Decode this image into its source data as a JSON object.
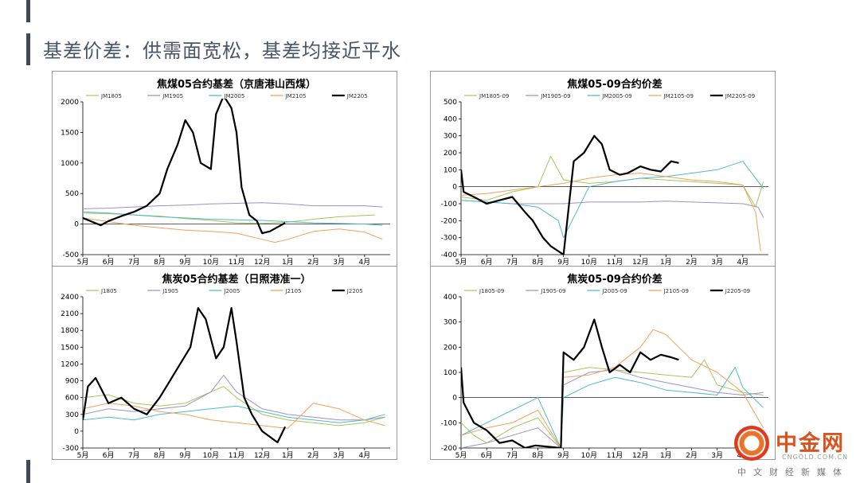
{
  "page": {
    "title": "基差价差：供需面宽松，基差均接近平水",
    "watermark": {
      "brand": "中金网",
      "url": "CNGOLD.COM.CN",
      "sub": "中文财经新媒体"
    }
  },
  "chart_data": [
    {
      "type": "line",
      "title": "焦煤05合约基差（京唐港山西煤）",
      "months": [
        "5月",
        "6月",
        "7月",
        "8月",
        "9月",
        "10月",
        "11月",
        "12月",
        "1月",
        "2月",
        "3月",
        "4月"
      ],
      "ylim": [
        -500,
        2000
      ],
      "yticks": [
        -500,
        0,
        500,
        1000,
        1500,
        2000
      ],
      "legend_position": "top",
      "zero_line": true,
      "series": [
        {
          "name": "JM1805",
          "color": "#a6c65a",
          "width": 1,
          "x": [
            0,
            1,
            2,
            3,
            4,
            5,
            6,
            7,
            8,
            9,
            10,
            11.4
          ],
          "y": [
            180,
            170,
            150,
            130,
            90,
            60,
            20,
            10,
            30,
            80,
            120,
            150
          ]
        },
        {
          "name": "JM1905",
          "color": "#9f8fc9",
          "width": 1,
          "x": [
            0,
            1,
            2,
            3,
            4,
            5,
            6,
            7,
            8,
            9,
            10,
            11,
            11.7
          ],
          "y": [
            250,
            260,
            280,
            300,
            310,
            330,
            340,
            350,
            330,
            300,
            300,
            300,
            280
          ]
        },
        {
          "name": "JM2005",
          "color": "#4fb9cc",
          "width": 1,
          "x": [
            0,
            1,
            2,
            3,
            4,
            5,
            6,
            7,
            8,
            9,
            10,
            11,
            11.7
          ],
          "y": [
            200,
            180,
            150,
            120,
            100,
            80,
            70,
            60,
            40,
            20,
            10,
            0,
            -20
          ]
        },
        {
          "name": "JM2105",
          "color": "#f0a15a",
          "width": 1,
          "x": [
            0,
            1,
            2,
            3,
            4,
            5,
            6,
            7,
            7.5,
            8,
            9,
            10,
            11,
            11.7
          ],
          "y": [
            100,
            40,
            -20,
            -60,
            -100,
            -120,
            -150,
            -250,
            -300,
            -250,
            -120,
            -80,
            -130,
            -250
          ]
        },
        {
          "name": "JM2205",
          "color": "#000000",
          "width": 2.2,
          "x": [
            0,
            0.7,
            1,
            1.5,
            2,
            2.5,
            3,
            3.3,
            3.7,
            4,
            4.3,
            4.6,
            5,
            5.2,
            5.5,
            5.8,
            6,
            6.2,
            6.5,
            6.8,
            7,
            7.3,
            7.6,
            7.9
          ],
          "y": [
            100,
            -20,
            50,
            130,
            200,
            300,
            500,
            900,
            1300,
            1700,
            1500,
            1000,
            900,
            1800,
            2100,
            1900,
            1500,
            600,
            150,
            50,
            -150,
            -120,
            -50,
            20
          ]
        }
      ]
    },
    {
      "type": "line",
      "title": "焦煤05-09合约价差",
      "months": [
        "5月",
        "6月",
        "7月",
        "8月",
        "9月",
        "10月",
        "11月",
        "12月",
        "1月",
        "2月",
        "3月",
        "4月"
      ],
      "ylim": [
        -400,
        500
      ],
      "yticks": [
        -400,
        -300,
        -200,
        -100,
        0,
        100,
        200,
        300,
        400,
        500
      ],
      "legend_position": "top",
      "zero_line": true,
      "series": [
        {
          "name": "JM1805-09",
          "color": "#a6c65a",
          "width": 1,
          "x": [
            0,
            1,
            2,
            3,
            3.5,
            4,
            5,
            6,
            7,
            8,
            9,
            10,
            11,
            11.5,
            11.8
          ],
          "y": [
            -60,
            -80,
            -30,
            0,
            180,
            40,
            20,
            30,
            50,
            40,
            30,
            20,
            10,
            -120,
            30
          ]
        },
        {
          "name": "JM1905-09",
          "color": "#9f8fc9",
          "width": 1,
          "x": [
            0,
            1,
            2,
            3,
            4,
            5,
            6,
            7,
            8,
            9,
            10,
            11,
            11.6,
            11.8
          ],
          "y": [
            -80,
            -90,
            -100,
            -100,
            -100,
            -90,
            -90,
            -90,
            -85,
            -90,
            -95,
            -100,
            -120,
            -180
          ]
        },
        {
          "name": "JM2005-09",
          "color": "#4fb9cc",
          "width": 1,
          "x": [
            0,
            1,
            2,
            3,
            3.8,
            4,
            5,
            6,
            7,
            8,
            9,
            10,
            11,
            11.8
          ],
          "y": [
            -80,
            -90,
            -100,
            -120,
            -200,
            -300,
            0,
            30,
            50,
            60,
            80,
            100,
            150,
            -10
          ]
        },
        {
          "name": "JM2105-09",
          "color": "#f0a15a",
          "width": 1,
          "x": [
            0,
            1,
            2,
            3,
            4,
            5,
            6,
            7,
            8,
            9,
            10,
            11,
            11.5,
            11.7
          ],
          "y": [
            -50,
            -40,
            -20,
            0,
            20,
            50,
            70,
            80,
            60,
            40,
            30,
            10,
            -150,
            -380
          ]
        },
        {
          "name": "JM2205-09",
          "color": "#000000",
          "width": 2.2,
          "x": [
            0,
            0.1,
            0.5,
            1,
            1.5,
            2,
            2.5,
            2.8,
            3.2,
            3.5,
            3.8,
            4,
            4.4,
            4.8,
            5.2,
            5.5,
            5.8,
            6.2,
            6.5,
            7,
            7.4,
            7.8,
            8.2,
            8.5
          ],
          "y": [
            100,
            -30,
            -60,
            -100,
            -80,
            -60,
            -150,
            -200,
            -300,
            -350,
            -380,
            -400,
            150,
            200,
            300,
            250,
            100,
            70,
            80,
            120,
            100,
            90,
            150,
            140
          ]
        }
      ]
    },
    {
      "type": "line",
      "title": "焦炭05合约基差（日照港准一）",
      "months": [
        "5月",
        "6月",
        "7月",
        "8月",
        "9月",
        "10月",
        "11月",
        "12月",
        "1月",
        "2月",
        "3月",
        "4月"
      ],
      "ylim": [
        -300,
        2400
      ],
      "yticks": [
        -300,
        0,
        300,
        600,
        900,
        1200,
        1500,
        1800,
        2100,
        2400
      ],
      "legend_position": "top",
      "zero_line": false,
      "series": [
        {
          "name": "J1805",
          "color": "#a6c65a",
          "width": 1,
          "x": [
            0,
            1,
            2,
            3,
            4,
            5,
            5.5,
            6,
            7,
            8,
            9,
            10,
            11,
            11.8
          ],
          "y": [
            600,
            650,
            500,
            450,
            500,
            700,
            800,
            600,
            300,
            200,
            150,
            100,
            150,
            250
          ]
        },
        {
          "name": "J1905",
          "color": "#9f8fc9",
          "width": 1,
          "x": [
            0,
            1,
            2,
            3,
            4,
            5,
            5.5,
            6,
            7,
            8,
            9,
            10,
            11,
            11.8
          ],
          "y": [
            300,
            400,
            350,
            400,
            450,
            700,
            1000,
            700,
            400,
            300,
            250,
            200,
            200,
            250
          ]
        },
        {
          "name": "J2005",
          "color": "#4fb9cc",
          "width": 1,
          "x": [
            0,
            1,
            2,
            3,
            4,
            5,
            6,
            7,
            8,
            9,
            10,
            11,
            11.8
          ],
          "y": [
            200,
            250,
            200,
            300,
            350,
            400,
            450,
            350,
            250,
            200,
            150,
            200,
            300
          ]
        },
        {
          "name": "J2105",
          "color": "#f0a15a",
          "width": 1,
          "x": [
            0,
            1,
            2,
            3,
            4,
            5,
            6,
            7,
            8,
            9,
            10,
            11,
            11.8
          ],
          "y": [
            400,
            500,
            450,
            350,
            300,
            200,
            150,
            100,
            50,
            500,
            400,
            200,
            100
          ]
        },
        {
          "name": "J2205",
          "color": "#000000",
          "width": 2.2,
          "x": [
            0,
            0.2,
            0.5,
            1,
            1.5,
            2,
            2.5,
            3,
            3.4,
            3.8,
            4.2,
            4.5,
            4.8,
            5.2,
            5.5,
            5.8,
            6,
            6.3,
            6.6,
            7,
            7.3,
            7.6,
            7.9
          ],
          "y": [
            200,
            800,
            950,
            500,
            600,
            400,
            300,
            600,
            900,
            1200,
            1500,
            2200,
            2000,
            1300,
            1500,
            2200,
            1600,
            600,
            300,
            0,
            -100,
            -200,
            80
          ]
        }
      ]
    },
    {
      "type": "line",
      "title": "焦炭05-09合约价差",
      "months": [
        "5月",
        "6月",
        "7月",
        "8月",
        "9月",
        "10月",
        "11月",
        "12月",
        "1月",
        "2月",
        "3月",
        "4月"
      ],
      "ylim": [
        -200,
        400
      ],
      "yticks": [
        -200,
        -100,
        0,
        100,
        200,
        300,
        400
      ],
      "legend_position": "top",
      "zero_line": true,
      "series": [
        {
          "name": "J1805-09",
          "color": "#a6c65a",
          "width": 1,
          "x": [
            0,
            0.5,
            1,
            2,
            3,
            3.9,
            4,
            5,
            6,
            7,
            8,
            9,
            9.5,
            10,
            11,
            11.8
          ],
          "y": [
            -100,
            -150,
            -180,
            -120,
            -80,
            -200,
            100,
            120,
            110,
            100,
            90,
            80,
            150,
            50,
            20,
            10
          ]
        },
        {
          "name": "J1905-09",
          "color": "#9f8fc9",
          "width": 1,
          "x": [
            0,
            1,
            2,
            3,
            3.9,
            4,
            5,
            6,
            7,
            8,
            9,
            10,
            11,
            11.8
          ],
          "y": [
            -200,
            -180,
            -150,
            -120,
            -200,
            50,
            100,
            110,
            80,
            60,
            40,
            20,
            10,
            20
          ]
        },
        {
          "name": "J2005-09",
          "color": "#4fb9cc",
          "width": 1,
          "x": [
            0,
            1,
            2,
            3,
            3.9,
            4,
            5,
            6,
            7,
            8,
            9,
            10,
            10.7,
            11,
            11.8
          ],
          "y": [
            -150,
            -100,
            -50,
            0,
            -200,
            0,
            50,
            80,
            60,
            30,
            20,
            10,
            120,
            40,
            -40
          ]
        },
        {
          "name": "J2105-09",
          "color": "#f0a15a",
          "width": 1,
          "x": [
            0,
            1,
            2,
            3,
            3.9,
            4,
            5,
            6,
            7,
            7.5,
            8,
            9,
            10,
            11,
            11.8
          ],
          "y": [
            -150,
            -120,
            -100,
            -50,
            -200,
            80,
            90,
            120,
            200,
            270,
            250,
            150,
            100,
            20,
            -120
          ]
        },
        {
          "name": "J2205-09",
          "color": "#000000",
          "width": 2.2,
          "x": [
            0,
            0.1,
            0.5,
            1,
            1.5,
            2,
            2.5,
            2.9,
            3.9,
            4,
            4.4,
            4.8,
            5.2,
            5.5,
            5.8,
            6.2,
            6.6,
            7,
            7.4,
            7.8,
            8.2,
            8.5
          ],
          "y": [
            120,
            -20,
            -100,
            -130,
            -180,
            -170,
            -200,
            -190,
            -200,
            180,
            150,
            200,
            310,
            200,
            100,
            130,
            100,
            180,
            150,
            170,
            160,
            150
          ]
        }
      ]
    }
  ]
}
